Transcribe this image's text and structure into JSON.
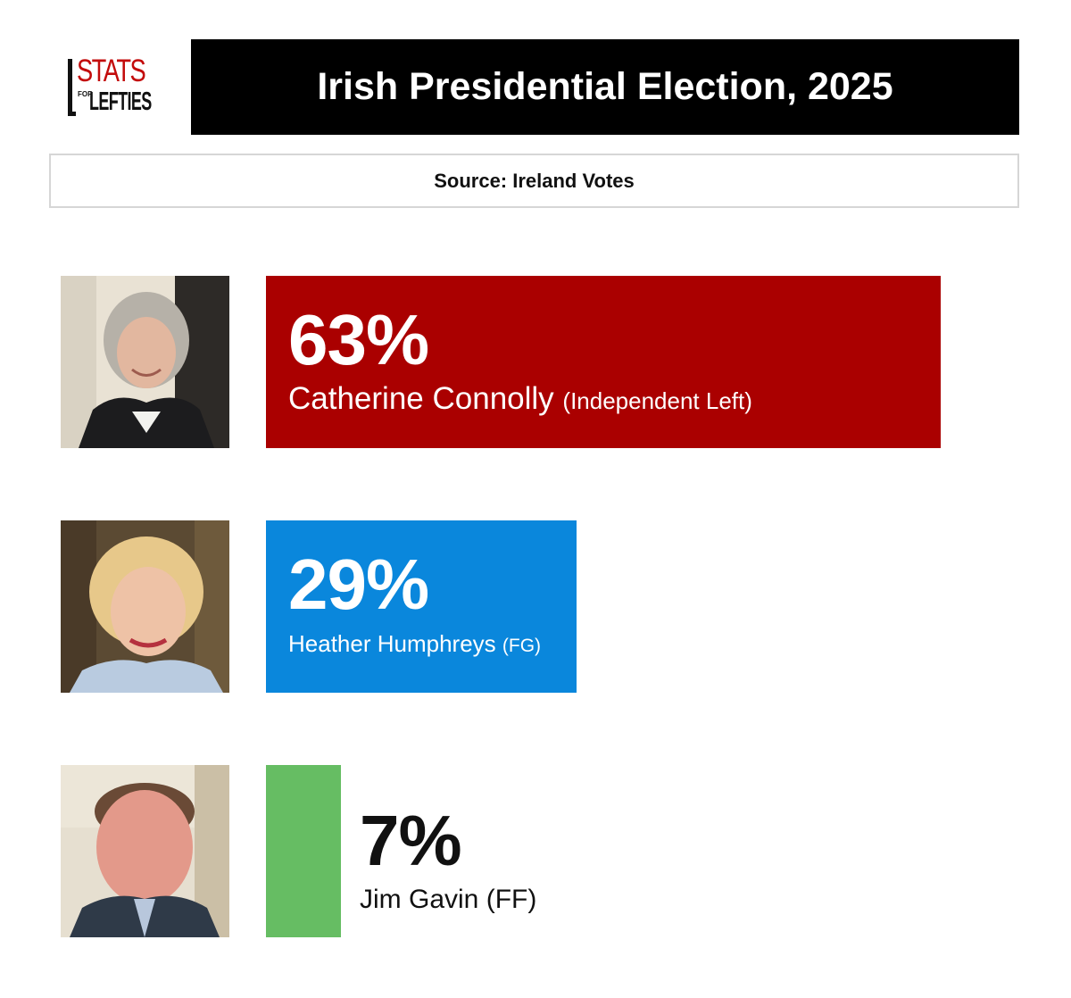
{
  "logo": {
    "top": "STATS",
    "small": "FOR",
    "bottom": "LEFTIES"
  },
  "header": {
    "title": "Irish Presidential Election, 2025"
  },
  "source": "Source: Ireland Votes",
  "colors": {
    "connolly": "#aa0000",
    "humphreys": "#0a87dc",
    "gavin": "#66bd63",
    "title_bg": "#000000",
    "logo_red": "#c30b0b"
  },
  "candidates": [
    {
      "pct_label": "63%",
      "name": "Catherine Connolly",
      "party": "(Independent Left)",
      "photo": "photo-catherine-connolly"
    },
    {
      "pct_label": "29%",
      "name": "Heather Humphreys",
      "party": "(FG)",
      "photo": "photo-heather-humphreys"
    },
    {
      "pct_label": "7%",
      "name": "Jim Gavin",
      "party": "(FF)",
      "photo": "photo-jim-gavin"
    }
  ],
  "chart_data": {
    "type": "bar",
    "orientation": "horizontal",
    "title": "Irish Presidential Election, 2025",
    "subtitle": "Source: Ireland Votes",
    "categories": [
      "Catherine Connolly (Independent Left)",
      "Heather Humphreys (FG)",
      "Jim Gavin (FF)"
    ],
    "values": [
      63,
      29,
      7
    ],
    "colors": [
      "#aa0000",
      "#0a87dc",
      "#66bd63"
    ],
    "unit": "%",
    "grid": false
  }
}
